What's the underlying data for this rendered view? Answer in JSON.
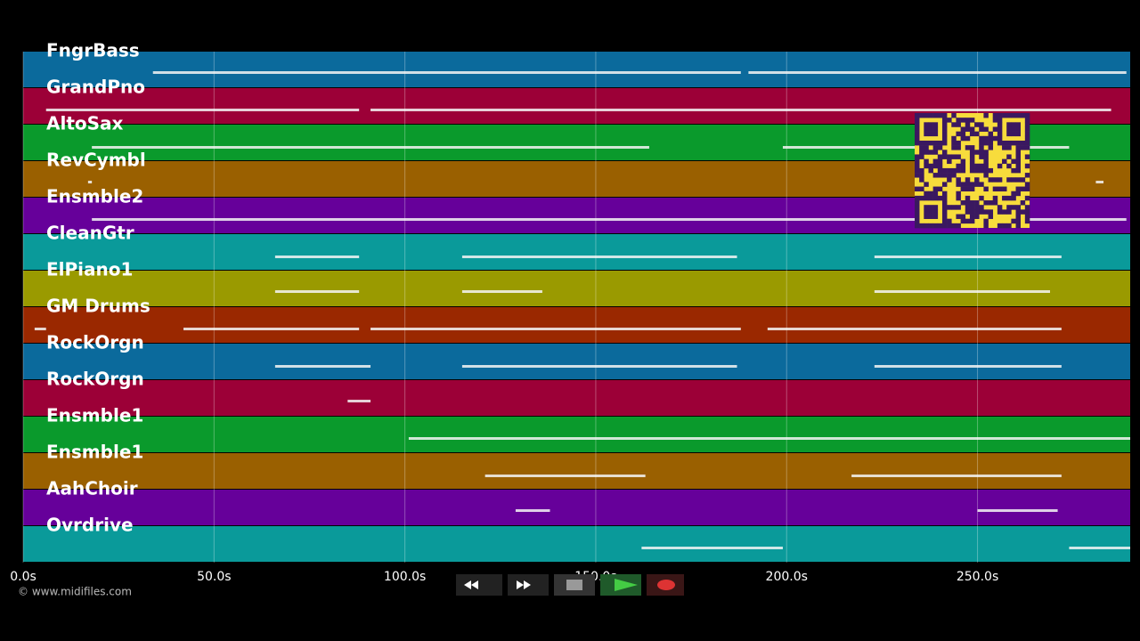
{
  "timeline": {
    "xlim": [
      0,
      290
    ],
    "ticks": [
      {
        "value": 0,
        "label": "0.0s"
      },
      {
        "value": 50,
        "label": "50.0s"
      },
      {
        "value": 100,
        "label": "100.0s"
      },
      {
        "value": 150,
        "label": "150.0s"
      },
      {
        "value": 200,
        "label": "200.0s"
      },
      {
        "value": 250,
        "label": "250.0s"
      }
    ],
    "tracks": [
      {
        "name": "FngrBass",
        "color": "#0b6a9c",
        "segments": [
          [
            34,
            188
          ],
          [
            190,
            289
          ]
        ]
      },
      {
        "name": "GrandPno",
        "color": "#9c0037",
        "segments": [
          [
            6,
            88
          ],
          [
            91,
            285
          ]
        ]
      },
      {
        "name": "AltoSax",
        "color": "#0a9a2c",
        "segments": [
          [
            18,
            164
          ],
          [
            199,
            274
          ]
        ]
      },
      {
        "name": "RevCymbl",
        "color": "#9a6000",
        "segments": [
          [
            17,
            18
          ],
          [
            281,
            283
          ]
        ]
      },
      {
        "name": "Ensmble2",
        "color": "#66009a",
        "segments": [
          [
            18,
            289
          ]
        ]
      },
      {
        "name": "CleanGtr",
        "color": "#0a9a9a",
        "segments": [
          [
            66,
            88
          ],
          [
            115,
            187
          ],
          [
            223,
            272
          ]
        ]
      },
      {
        "name": "ElPiano1",
        "color": "#9a9a00",
        "segments": [
          [
            66,
            88
          ],
          [
            115,
            136
          ],
          [
            223,
            269
          ]
        ]
      },
      {
        "name": "GM Drums",
        "color": "#9a2800",
        "segments": [
          [
            3,
            6
          ],
          [
            42,
            88
          ],
          [
            91,
            188
          ],
          [
            195,
            272
          ]
        ]
      },
      {
        "name": "RockOrgn",
        "color": "#0b6a9c",
        "segments": [
          [
            66,
            91
          ],
          [
            115,
            187
          ],
          [
            223,
            272
          ]
        ]
      },
      {
        "name": "RockOrgn",
        "color": "#9c0037",
        "segments": [
          [
            85,
            91
          ]
        ]
      },
      {
        "name": "Ensmble1",
        "color": "#0a9a2c",
        "segments": [
          [
            101,
            290
          ]
        ]
      },
      {
        "name": "Ensmble1",
        "color": "#9a6000",
        "segments": [
          [
            121,
            163
          ],
          [
            217,
            272
          ]
        ]
      },
      {
        "name": "AahChoir",
        "color": "#66009a",
        "segments": [
          [
            129,
            138
          ],
          [
            250,
            271
          ]
        ]
      },
      {
        "name": "Ovrdrive",
        "color": "#0a9a9a",
        "segments": [
          [
            162,
            199
          ],
          [
            274,
            290
          ]
        ]
      }
    ]
  },
  "footer": {
    "copyright": "© www.midifiles.com"
  }
}
